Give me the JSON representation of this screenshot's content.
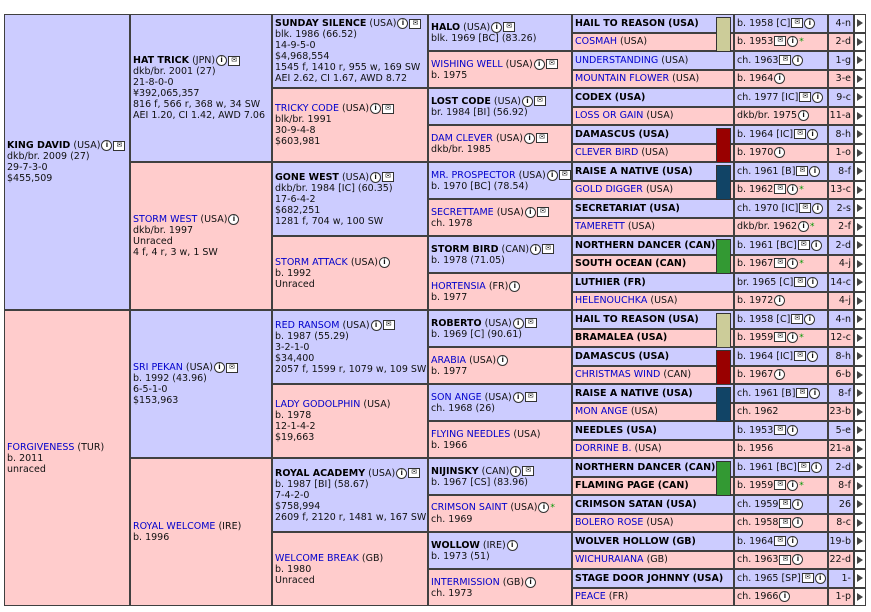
{
  "gen1": [
    {
      "name": "KING DAVID",
      "country": "(USA)",
      "lines": [
        "dkb/br. 2009 (27)",
        "29-7-3-0",
        "$455,509"
      ],
      "sex": "m",
      "bold": true,
      "icons": [
        "i",
        "e"
      ]
    },
    {
      "name": "FORGIVENESS",
      "country": "(TUR)",
      "lines": [
        "b. 2011",
        "unraced"
      ],
      "sex": "f",
      "bold": false,
      "icons": []
    }
  ],
  "gen2": [
    {
      "name": "HAT TRICK",
      "country": "(JPN)",
      "lines": [
        "dkb/br. 2001 (27)",
        "21-8-0-0",
        "¥392,065,357",
        "816 f, 566 r, 368 w, 34 SW",
        "AEI 1.20, CI 1.42, AWD 7.06"
      ],
      "sex": "m",
      "bold": true,
      "icons": [
        "i",
        "e"
      ]
    },
    {
      "name": "STORM WEST",
      "country": "(USA)",
      "lines": [
        "dkb/br. 1997",
        "Unraced",
        "4 f, 4 r, 3 w, 1 SW"
      ],
      "sex": "f",
      "bold": false,
      "icons": [
        "i"
      ]
    },
    {
      "name": "SRI PEKAN",
      "country": "(USA)",
      "lines": [
        "b. 1992 (43.96)",
        "6-5-1-0",
        "$153,963"
      ],
      "sex": "m",
      "bold": false,
      "icons": [
        "i",
        "e"
      ]
    },
    {
      "name": "ROYAL WELCOME",
      "country": "(IRE)",
      "lines": [
        "b. 1996"
      ],
      "sex": "f",
      "bold": false,
      "icons": []
    }
  ],
  "gen3": [
    {
      "name": "SUNDAY SILENCE",
      "country": "(USA)",
      "lines": [
        "blk. 1986 (66.52)",
        "14-9-5-0",
        "$4,968,554",
        "1545 f, 1410 r, 955 w, 169 SW",
        "AEI 2.62, CI 1.67, AWD 8.72"
      ],
      "sex": "m",
      "bold": true,
      "icons": [
        "i",
        "e"
      ]
    },
    {
      "name": "TRICKY CODE",
      "country": "(USA)",
      "lines": [
        "blk/br. 1991",
        "30-9-4-8",
        "$603,981"
      ],
      "sex": "f",
      "bold": false,
      "icons": [
        "i",
        "e"
      ]
    },
    {
      "name": "GONE WEST",
      "country": "(USA)",
      "lines": [
        "dkb/br. 1984 [IC] (60.35)",
        "17-6-4-2",
        "$682,251",
        "1281 f, 704 w, 100 SW"
      ],
      "sex": "m",
      "bold": true,
      "icons": [
        "i",
        "e"
      ]
    },
    {
      "name": "STORM ATTACK",
      "country": "(USA)",
      "lines": [
        "b. 1992",
        "Unraced"
      ],
      "sex": "f",
      "bold": false,
      "icons": [
        "i"
      ]
    },
    {
      "name": "RED RANSOM",
      "country": "(USA)",
      "lines": [
        "b. 1987 (55.29)",
        "3-2-1-0",
        "$34,400",
        "2057 f, 1599 r, 1079 w, 109 SW"
      ],
      "sex": "m",
      "bold": false,
      "icons": [
        "i",
        "e"
      ]
    },
    {
      "name": "LADY GODOLPHIN",
      "country": "(USA)",
      "lines": [
        "b. 1978",
        "12-1-4-2",
        "$19,663"
      ],
      "sex": "f",
      "bold": false,
      "icons": []
    },
    {
      "name": "ROYAL ACADEMY",
      "country": "(USA)",
      "lines": [
        "b. 1987 [BI] (58.67)",
        "7-4-2-0",
        "$758,994",
        "2609 f, 2120 r, 1481 w, 167 SW"
      ],
      "sex": "m",
      "bold": true,
      "icons": [
        "i",
        "e"
      ]
    },
    {
      "name": "WELCOME BREAK",
      "country": "(GB)",
      "lines": [
        "b. 1980",
        "Unraced"
      ],
      "sex": "f",
      "bold": false,
      "icons": []
    }
  ],
  "gen4": [
    {
      "name": "HALO",
      "country": "(USA)",
      "lines": [
        "blk. 1969 [BC] (83.26)"
      ],
      "sex": "m",
      "bold": true,
      "icons": [
        "i",
        "e"
      ]
    },
    {
      "name": "WISHING WELL",
      "country": "(USA)",
      "lines": [
        "b. 1975"
      ],
      "sex": "f",
      "bold": false,
      "icons": [
        "i",
        "e"
      ]
    },
    {
      "name": "LOST CODE",
      "country": "(USA)",
      "lines": [
        "br. 1984 [BI] (56.92)"
      ],
      "sex": "m",
      "bold": true,
      "icons": [
        "i",
        "e"
      ]
    },
    {
      "name": "DAM CLEVER",
      "country": "(USA)",
      "lines": [
        "dkb/br. 1985"
      ],
      "sex": "f",
      "bold": false,
      "icons": [
        "i",
        "e"
      ]
    },
    {
      "name": "MR. PROSPECTOR",
      "country": "(USA)",
      "lines": [
        "b. 1970 [BC] (78.54)"
      ],
      "sex": "m",
      "bold": false,
      "icons": [
        "i",
        "e"
      ]
    },
    {
      "name": "SECRETTAME",
      "country": "(USA)",
      "lines": [
        "ch. 1978"
      ],
      "sex": "f",
      "bold": false,
      "icons": [
        "i",
        "e"
      ]
    },
    {
      "name": "STORM BIRD",
      "country": "(CAN)",
      "lines": [
        "b. 1978 (71.05)"
      ],
      "sex": "m",
      "bold": true,
      "icons": [
        "i",
        "e"
      ]
    },
    {
      "name": "HORTENSIA",
      "country": "(FR)",
      "lines": [
        "b. 1977"
      ],
      "sex": "f",
      "bold": false,
      "icons": [
        "i"
      ]
    },
    {
      "name": "ROBERTO",
      "country": "(USA)",
      "lines": [
        "b. 1969 [C] (90.61)"
      ],
      "sex": "m",
      "bold": true,
      "icons": [
        "i",
        "e"
      ]
    },
    {
      "name": "ARABIA",
      "country": "(USA)",
      "lines": [
        "b. 1977"
      ],
      "sex": "f",
      "bold": false,
      "icons": [
        "i"
      ]
    },
    {
      "name": "SON ANGE",
      "country": "(USA)",
      "lines": [
        "ch. 1968 (26)"
      ],
      "sex": "m",
      "bold": false,
      "icons": [
        "i",
        "e"
      ]
    },
    {
      "name": "FLYING NEEDLES",
      "country": "(USA)",
      "lines": [
        "b. 1966"
      ],
      "sex": "f",
      "bold": false,
      "icons": []
    },
    {
      "name": "NIJINSKY",
      "country": "(CAN)",
      "lines": [
        "b. 1967 [CS] (83.96)"
      ],
      "sex": "m",
      "bold": true,
      "icons": [
        "i",
        "e"
      ]
    },
    {
      "name": "CRIMSON SAINT",
      "country": "(USA)",
      "lines": [
        "ch. 1969"
      ],
      "sex": "f",
      "bold": false,
      "icons": [
        "i",
        "star"
      ]
    },
    {
      "name": "WOLLOW",
      "country": "(IRE)",
      "lines": [
        "b. 1973 (51)"
      ],
      "sex": "m",
      "bold": true,
      "icons": [
        "i"
      ]
    },
    {
      "name": "INTERMISSION",
      "country": "(GB)",
      "lines": [
        "ch. 1973"
      ],
      "sex": "f",
      "bold": false,
      "icons": [
        "i"
      ]
    }
  ],
  "gen5": [
    {
      "name": "HAIL TO REASON",
      "country": "(USA)",
      "info": "b. 1958 [C]",
      "rank": "4-n",
      "sex": "m",
      "bold": true,
      "swatch": "#cccc99",
      "icons": [
        "e",
        "i"
      ]
    },
    {
      "name": "COSMAH",
      "country": "(USA)",
      "info": "b. 1953",
      "rank": "2-d",
      "sex": "f",
      "bold": false,
      "swatch": "",
      "icons": [
        "e",
        "i",
        "star"
      ]
    },
    {
      "name": "UNDERSTANDING",
      "country": "(USA)",
      "info": "ch. 1963",
      "rank": "1-g",
      "sex": "m",
      "bold": false,
      "swatch": "",
      "icons": [
        "e",
        "i"
      ]
    },
    {
      "name": "MOUNTAIN FLOWER",
      "country": "(USA)",
      "info": "b. 1964",
      "rank": "3-e",
      "sex": "f",
      "bold": false,
      "swatch": "",
      "icons": [
        "i"
      ]
    },
    {
      "name": "CODEX",
      "country": "(USA)",
      "info": "ch. 1977 [IC]",
      "rank": "9-c",
      "sex": "m",
      "bold": true,
      "swatch": "",
      "icons": [
        "e",
        "i"
      ]
    },
    {
      "name": "LOSS OR GAIN",
      "country": "(USA)",
      "info": "dkb/br. 1975",
      "rank": "11-a",
      "sex": "f",
      "bold": false,
      "swatch": "",
      "icons": [
        "i"
      ]
    },
    {
      "name": "DAMASCUS",
      "country": "(USA)",
      "info": "b. 1964 [IC]",
      "rank": "8-h",
      "sex": "m",
      "bold": true,
      "swatch": "#990000",
      "icons": [
        "e",
        "i"
      ]
    },
    {
      "name": "CLEVER BIRD",
      "country": "(USA)",
      "info": "b. 1970",
      "rank": "1-o",
      "sex": "f",
      "bold": false,
      "swatch": "",
      "icons": [
        "i"
      ]
    },
    {
      "name": "RAISE A NATIVE",
      "country": "(USA)",
      "info": "ch. 1961 [B]",
      "rank": "8-f",
      "sex": "m",
      "bold": true,
      "swatch": "#114466",
      "icons": [
        "e",
        "i"
      ]
    },
    {
      "name": "GOLD DIGGER",
      "country": "(USA)",
      "info": "b. 1962",
      "rank": "13-c",
      "sex": "f",
      "bold": false,
      "swatch": "",
      "icons": [
        "e",
        "i",
        "star"
      ]
    },
    {
      "name": "SECRETARIAT",
      "country": "(USA)",
      "info": "ch. 1970 [IC]",
      "rank": "2-s",
      "sex": "m",
      "bold": true,
      "swatch": "",
      "icons": [
        "e",
        "i"
      ]
    },
    {
      "name": "TAMERETT",
      "country": "(USA)",
      "info": "dkb/br. 1962",
      "rank": "2-f",
      "sex": "f",
      "bold": false,
      "swatch": "",
      "icons": [
        "i",
        "star"
      ]
    },
    {
      "name": "NORTHERN DANCER",
      "country": "(CAN)",
      "info": "b. 1961 [BC]",
      "rank": "2-d",
      "sex": "m",
      "bold": true,
      "swatch": "#339933",
      "icons": [
        "e",
        "i"
      ]
    },
    {
      "name": "SOUTH OCEAN",
      "country": "(CAN)",
      "info": "b. 1967",
      "rank": "4-j",
      "sex": "f",
      "bold": true,
      "swatch": "",
      "icons": [
        "e",
        "i",
        "star"
      ]
    },
    {
      "name": "LUTHIER",
      "country": "(FR)",
      "info": "br. 1965 [C]",
      "rank": "14-c",
      "sex": "m",
      "bold": true,
      "swatch": "",
      "icons": [
        "e",
        "i"
      ]
    },
    {
      "name": "HELENOUCHKA",
      "country": "(USA)",
      "info": "b. 1972",
      "rank": "4-j",
      "sex": "f",
      "bold": false,
      "swatch": "",
      "icons": [
        "i"
      ]
    },
    {
      "name": "HAIL TO REASON",
      "country": "(USA)",
      "info": "b. 1958 [C]",
      "rank": "4-n",
      "sex": "m",
      "bold": true,
      "swatch": "#cccc99",
      "icons": [
        "e",
        "i"
      ]
    },
    {
      "name": "BRAMALEA",
      "country": "(USA)",
      "info": "b. 1959",
      "rank": "12-c",
      "sex": "f",
      "bold": true,
      "swatch": "",
      "icons": [
        "e",
        "i",
        "star"
      ]
    },
    {
      "name": "DAMASCUS",
      "country": "(USA)",
      "info": "b. 1964 [IC]",
      "rank": "8-h",
      "sex": "m",
      "bold": true,
      "swatch": "#990000",
      "icons": [
        "e",
        "i"
      ]
    },
    {
      "name": "CHRISTMAS WIND",
      "country": "(CAN)",
      "info": "b. 1967",
      "rank": "6-b",
      "sex": "f",
      "bold": false,
      "swatch": "",
      "icons": [
        "i"
      ]
    },
    {
      "name": "RAISE A NATIVE",
      "country": "(USA)",
      "info": "ch. 1961 [B]",
      "rank": "8-f",
      "sex": "m",
      "bold": true,
      "swatch": "#114466",
      "icons": [
        "e",
        "i"
      ]
    },
    {
      "name": "MON ANGE",
      "country": "(USA)",
      "info": "ch. 1962",
      "rank": "23-b",
      "sex": "f",
      "bold": false,
      "swatch": "",
      "icons": []
    },
    {
      "name": "NEEDLES",
      "country": "(USA)",
      "info": "b. 1953",
      "rank": "5-e",
      "sex": "m",
      "bold": true,
      "swatch": "",
      "icons": [
        "e",
        "i"
      ]
    },
    {
      "name": "DORRINE B.",
      "country": "(USA)",
      "info": "b. 1956",
      "rank": "21-a",
      "sex": "f",
      "bold": false,
      "swatch": "",
      "icons": []
    },
    {
      "name": "NORTHERN DANCER",
      "country": "(CAN)",
      "info": "b. 1961 [BC]",
      "rank": "2-d",
      "sex": "m",
      "bold": true,
      "swatch": "#339933",
      "icons": [
        "e",
        "i"
      ]
    },
    {
      "name": "FLAMING PAGE",
      "country": "(CAN)",
      "info": "b. 1959",
      "rank": "8-f",
      "sex": "f",
      "bold": true,
      "swatch": "",
      "icons": [
        "e",
        "i",
        "star"
      ]
    },
    {
      "name": "CRIMSON SATAN",
      "country": "(USA)",
      "info": "ch. 1959",
      "rank": "26",
      "sex": "m",
      "bold": true,
      "swatch": "",
      "icons": [
        "e",
        "i"
      ]
    },
    {
      "name": "BOLERO ROSE",
      "country": "(USA)",
      "info": "ch. 1958",
      "rank": "8-c",
      "sex": "f",
      "bold": false,
      "swatch": "",
      "icons": [
        "e",
        "i"
      ]
    },
    {
      "name": "WOLVER HOLLOW",
      "country": "(GB)",
      "info": "b. 1964",
      "rank": "19-b",
      "sex": "m",
      "bold": true,
      "swatch": "",
      "icons": [
        "e",
        "i"
      ]
    },
    {
      "name": "WICHURAIANA",
      "country": "(GB)",
      "info": "ch. 1963",
      "rank": "22-d",
      "sex": "f",
      "bold": false,
      "swatch": "",
      "icons": [
        "e",
        "i"
      ]
    },
    {
      "name": "STAGE DOOR JOHNNY",
      "country": "(USA)",
      "info": "ch. 1965 [SP]",
      "rank": "1-",
      "sex": "m",
      "bold": true,
      "swatch": "",
      "icons": [
        "e",
        "i"
      ]
    },
    {
      "name": "PEACE",
      "country": "(FR)",
      "info": "ch. 1966",
      "rank": "1-p",
      "sex": "f",
      "bold": false,
      "swatch": "",
      "icons": [
        "i"
      ]
    }
  ],
  "icon_labels": {
    "info": "i",
    "email": "✉",
    "star": "*"
  },
  "more_icon": "arrow-right-icon"
}
